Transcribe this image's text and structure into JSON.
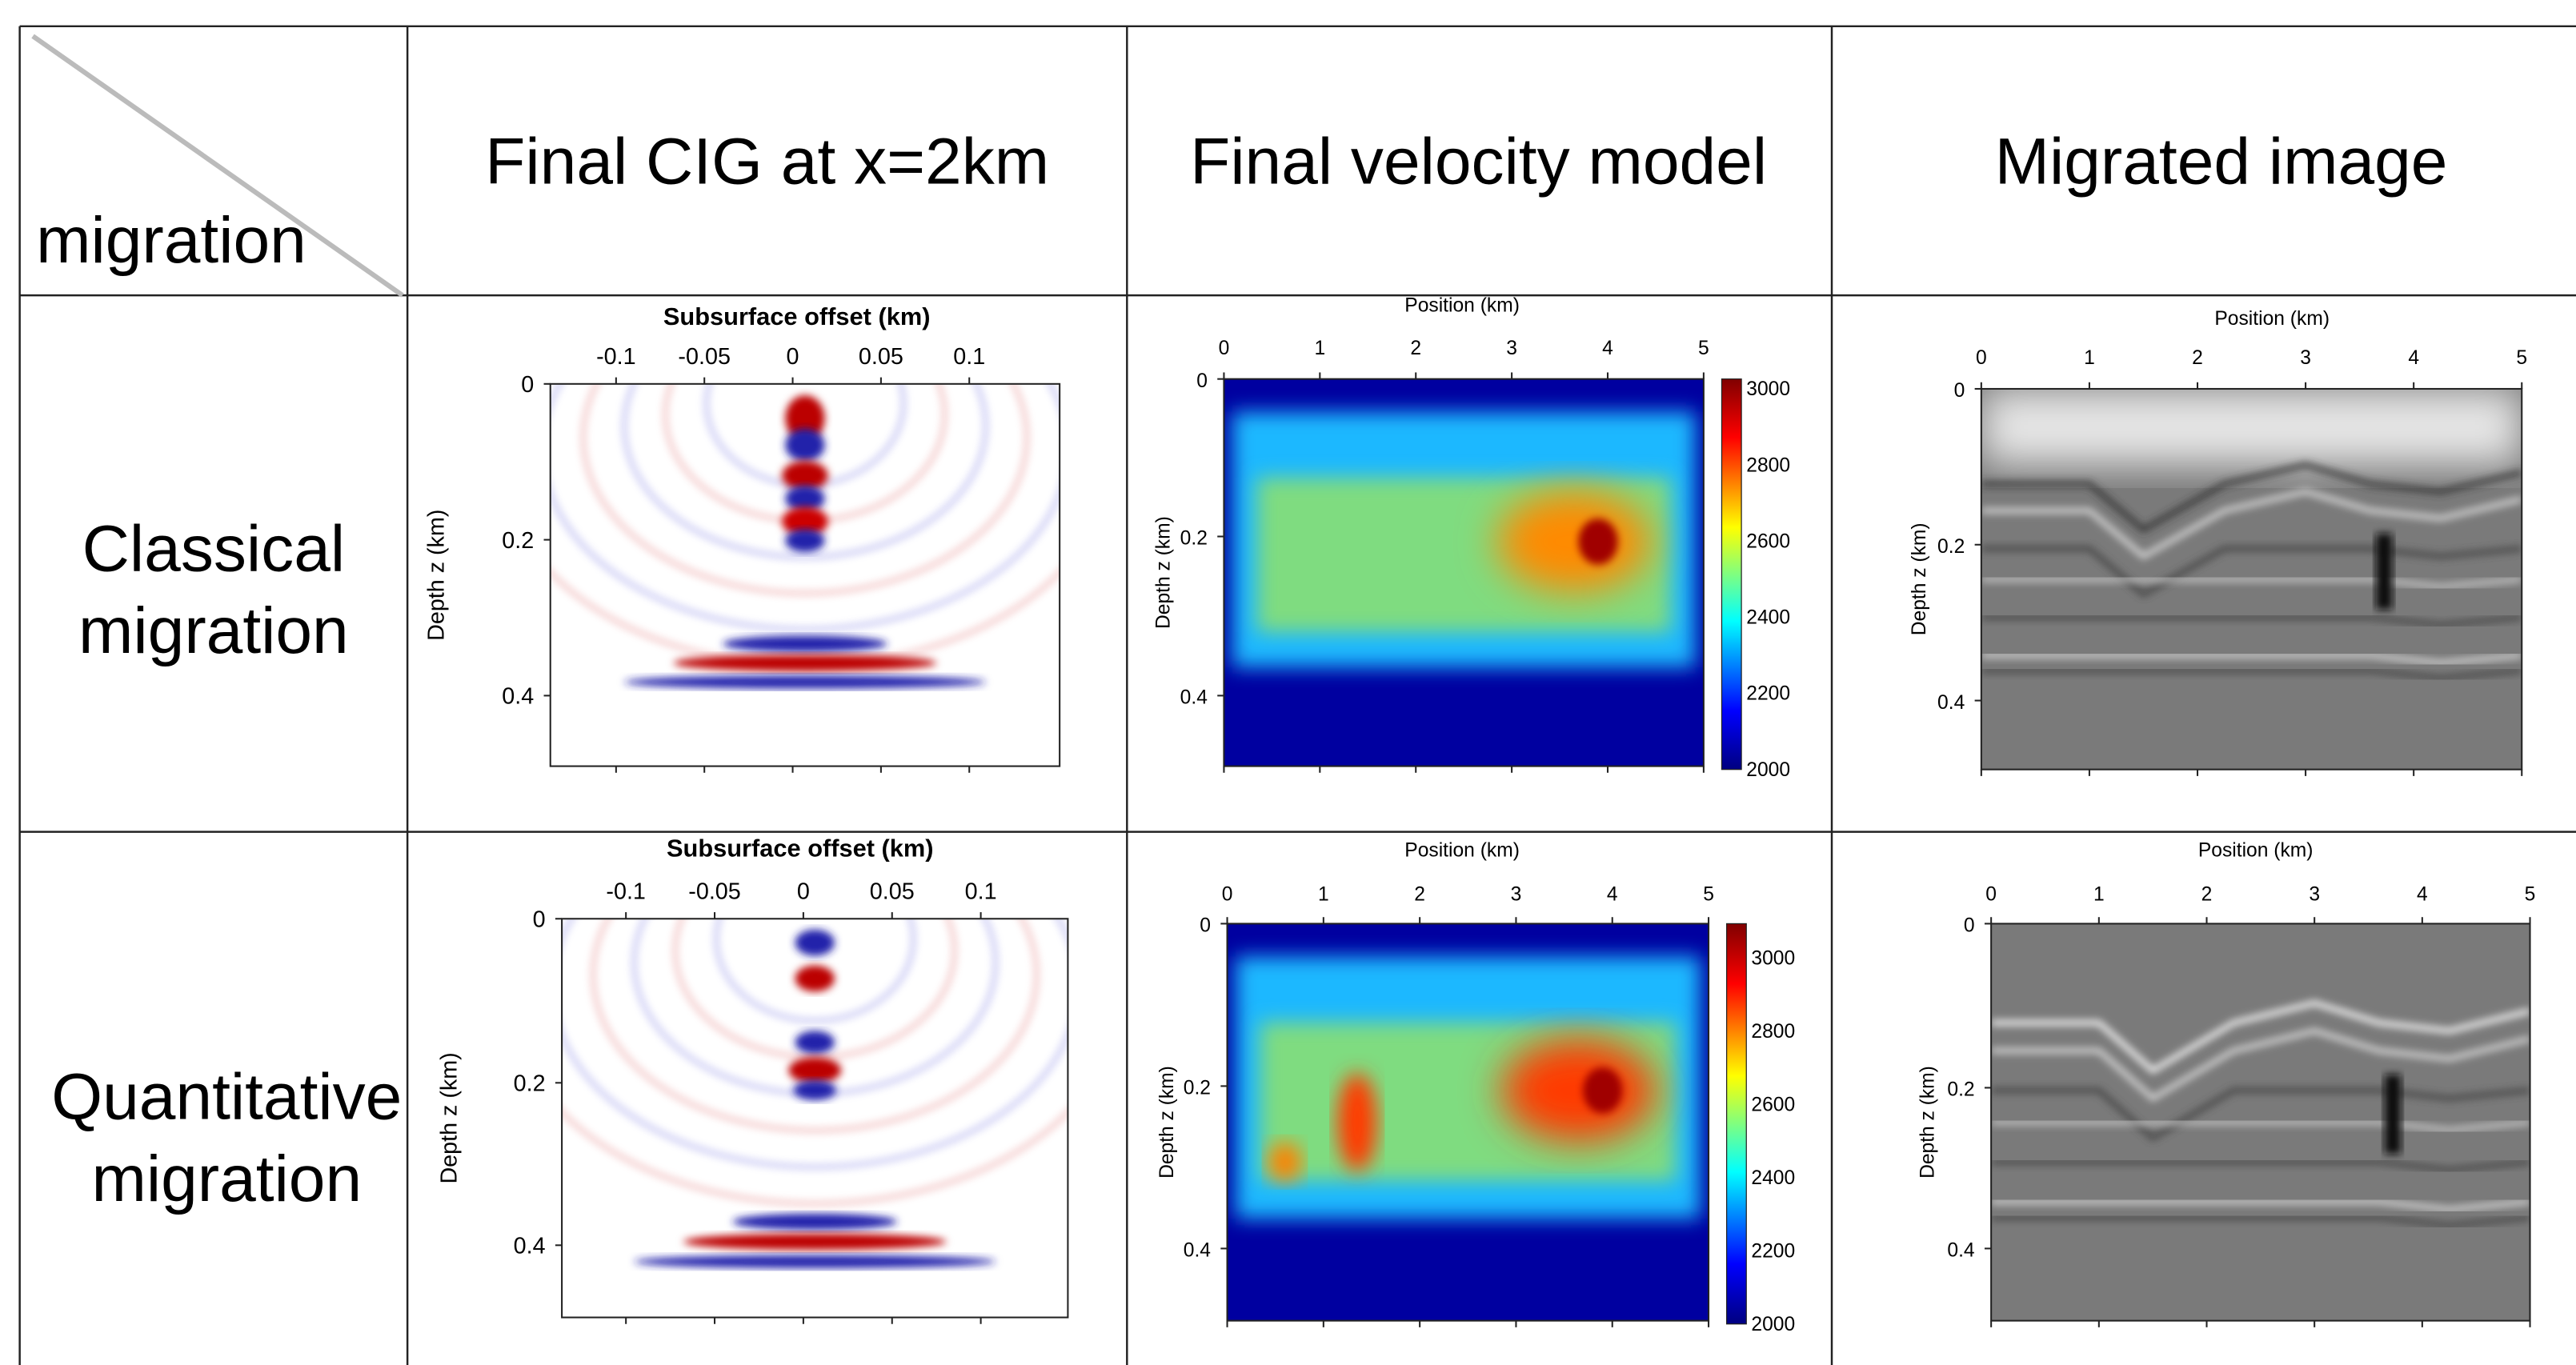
{
  "header": {
    "corner_label": "migration",
    "columns": [
      "Final CIG at x=2km",
      "Final velocity model",
      "Migrated image"
    ]
  },
  "rows": [
    {
      "label": [
        "Classical",
        "migration"
      ],
      "cig": {
        "title": "Subsurface offset (km)",
        "xticks": [
          "-0.1",
          "-0.05",
          "0",
          "0.05",
          "0.1"
        ],
        "ylabel": "Depth z (km)",
        "yticks": [
          "0",
          "0.2",
          "0.4"
        ]
      },
      "velocity": {
        "title": "Position (km)",
        "xticks": [
          "0",
          "1",
          "2",
          "3",
          "4",
          "5"
        ],
        "ylabel": "Depth z (km)",
        "yticks": [
          "0",
          "0.2",
          "0.4"
        ],
        "colorbar_ticks": [
          "3000",
          "2800",
          "2600",
          "2400",
          "2200",
          "2000"
        ]
      },
      "migrated": {
        "title": "Position (km)",
        "xticks": [
          "0",
          "1",
          "2",
          "3",
          "4",
          "5"
        ],
        "ylabel": "Depth z (km)",
        "yticks": [
          "0",
          "0.2",
          "0.4"
        ]
      }
    },
    {
      "label": [
        "Quantitative",
        "migration"
      ],
      "cig": {
        "title": "Subsurface offset (km)",
        "xticks": [
          "-0.1",
          "-0.05",
          "0",
          "0.05",
          "0.1"
        ],
        "ylabel": "Depth z (km)",
        "yticks": [
          "0",
          "0.2",
          "0.4"
        ]
      },
      "velocity": {
        "title": "Position (km)",
        "xticks": [
          "0",
          "1",
          "2",
          "3",
          "4",
          "5"
        ],
        "ylabel": "Depth z (km)",
        "yticks": [
          "0",
          "0.2",
          "0.4"
        ],
        "colorbar_ticks": [
          "3000",
          "2800",
          "2600",
          "2400",
          "2200",
          "2000"
        ]
      },
      "migrated": {
        "title": "Position (km)",
        "xticks": [
          "0",
          "1",
          "2",
          "3",
          "4",
          "5"
        ],
        "ylabel": "Depth z (km)",
        "yticks": [
          "0",
          "0.2",
          "0.4"
        ]
      }
    }
  ]
}
